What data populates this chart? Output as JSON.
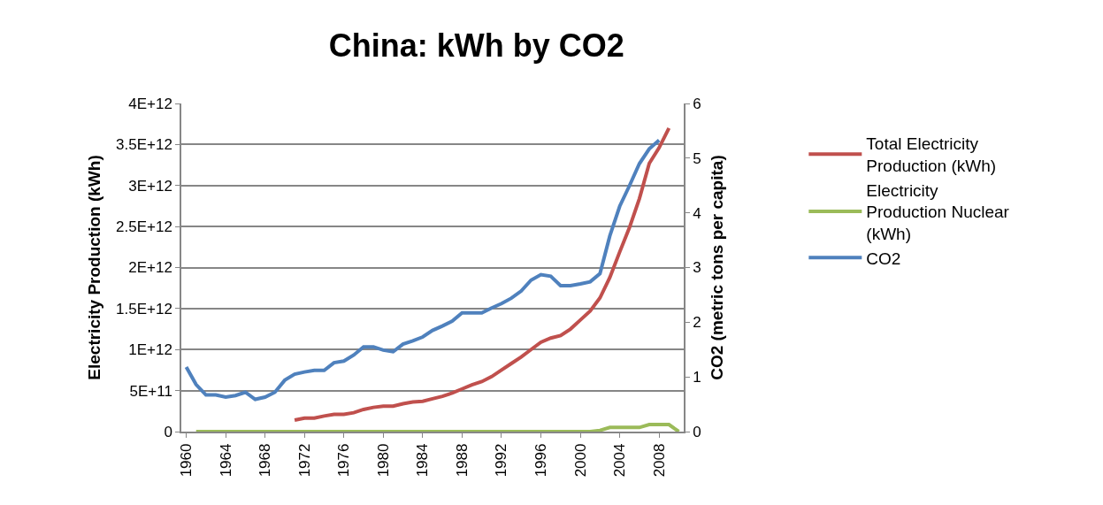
{
  "chart_data": {
    "type": "line",
    "title": "China: kWh by CO2",
    "ylabel": "Electricity Production (kWh)",
    "y2label": "CO2 (metric tons per capita)",
    "x": [
      1960,
      1961,
      1962,
      1963,
      1964,
      1965,
      1966,
      1967,
      1968,
      1969,
      1970,
      1971,
      1972,
      1973,
      1974,
      1975,
      1976,
      1977,
      1978,
      1979,
      1980,
      1981,
      1982,
      1983,
      1984,
      1985,
      1986,
      1987,
      1988,
      1989,
      1990,
      1991,
      1992,
      1993,
      1994,
      1995,
      1996,
      1997,
      1998,
      1999,
      2000,
      2001,
      2002,
      2003,
      2004,
      2005,
      2006,
      2007,
      2008,
      2009,
      2010
    ],
    "xlim": [
      1959.5,
      2010.5
    ],
    "xticks": [
      1960,
      1964,
      1968,
      1972,
      1976,
      1980,
      1984,
      1988,
      1992,
      1996,
      2000,
      2004,
      2008
    ],
    "ylim": [
      0,
      4000000000000.0
    ],
    "yticks": [
      0,
      {
        "value": 500000000000.0,
        "label": "5E+11"
      },
      {
        "value": 1000000000000.0,
        "label": "1E+12"
      },
      {
        "value": 1500000000000.0,
        "label": "1.5E+12"
      },
      {
        "value": 2000000000000.0,
        "label": "2E+12"
      },
      {
        "value": 2500000000000.0,
        "label": "2.5E+12"
      },
      {
        "value": 3000000000000.0,
        "label": "3E+12"
      },
      {
        "value": 3500000000000.0,
        "label": "3.5E+12"
      },
      {
        "value": 4000000000000.0,
        "label": "4E+12"
      }
    ],
    "y2lim": [
      0,
      6
    ],
    "y2ticks": [
      0,
      1,
      2,
      3,
      4,
      5,
      6
    ],
    "grid": "y",
    "legend": "right",
    "marker": "none",
    "line_style": "solid",
    "series": [
      {
        "name": "Total Electricity Production (kWh)",
        "color": "#c0504d",
        "values": [
          null,
          null,
          null,
          null,
          null,
          null,
          null,
          null,
          null,
          null,
          null,
          140000000000.0,
          165000000000.0,
          165000000000.0,
          190000000000.0,
          210000000000.0,
          210000000000.0,
          230000000000.0,
          270000000000.0,
          295000000000.0,
          310000000000.0,
          310000000000.0,
          340000000000.0,
          360000000000.0,
          370000000000.0,
          400000000000.0,
          430000000000.0,
          470000000000.0,
          520000000000.0,
          570000000000.0,
          610000000000.0,
          670000000000.0,
          750000000000.0,
          830000000000.0,
          910000000000.0,
          1000000000000.0,
          1090000000000.0,
          1140000000000.0,
          1170000000000.0,
          1250000000000.0,
          1360000000000.0,
          1470000000000.0,
          1630000000000.0,
          1880000000000.0,
          2190000000000.0,
          2490000000000.0,
          2840000000000.0,
          3270000000000.0,
          3460000000000.0,
          3700000000000.0,
          null
        ]
      },
      {
        "name": "Electricity Production Nuclear (kWh)",
        "color": "#9bbb59",
        "values": [
          null,
          0,
          0,
          0,
          0,
          0,
          0,
          0,
          0,
          0,
          0,
          0,
          0,
          0,
          0,
          0,
          0,
          0,
          0,
          0,
          0,
          0,
          0,
          0,
          0,
          0,
          0,
          0,
          0,
          0,
          0,
          0,
          0,
          0,
          0,
          0,
          0,
          0,
          0,
          0,
          0,
          0,
          15000000000.0,
          50000000000.0,
          50000000000.0,
          50000000000.0,
          50000000000.0,
          85000000000.0,
          85000000000.0,
          85000000000.0,
          0
        ]
      },
      {
        "name": "CO2",
        "color": "#4f81bd",
        "axis": "y2",
        "values": [
          1.18,
          0.86,
          0.67,
          0.67,
          0.63,
          0.66,
          0.72,
          0.59,
          0.63,
          0.72,
          0.94,
          1.05,
          1.09,
          1.12,
          1.12,
          1.26,
          1.29,
          1.4,
          1.55,
          1.55,
          1.49,
          1.46,
          1.6,
          1.66,
          1.73,
          1.85,
          1.93,
          2.02,
          2.17,
          2.17,
          2.17,
          2.26,
          2.34,
          2.44,
          2.57,
          2.77,
          2.87,
          2.84,
          2.67,
          2.67,
          2.7,
          2.74,
          2.89,
          3.58,
          4.12,
          4.5,
          4.9,
          5.17,
          5.33,
          null,
          null
        ]
      }
    ]
  }
}
